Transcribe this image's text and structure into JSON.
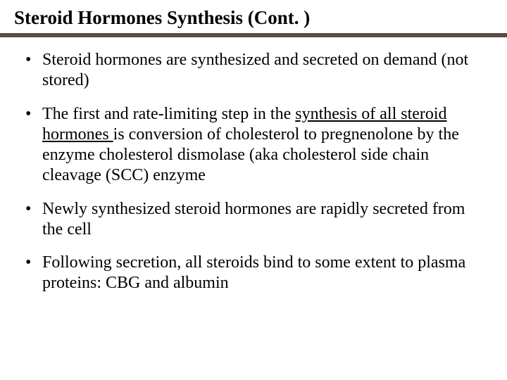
{
  "slide": {
    "title": "Steroid Hormones Synthesis (Cont. )",
    "title_color": "#000000",
    "title_fontsize": 27,
    "divider_color": "#5a4a42",
    "background_color": "#ffffff",
    "body_fontsize": 24,
    "body_color": "#000000",
    "bullets": {
      "b1": "Steroid hormones are synthesized and secreted on demand (not stored)",
      "b2_pre": "The first and rate-limiting step in the ",
      "b2_underlined": "synthesis of all steroid hormones ",
      "b2_post": "is conversion of cholesterol to pregnenolone by the enzyme cholesterol dismolase (aka cholesterol side chain cleavage (SCC) enzyme",
      "b3": "Newly synthesized steroid hormones are rapidly secreted from the cell",
      "b4": "Following secretion, all steroids bind to some extent to plasma proteins: CBG and albumin"
    }
  }
}
